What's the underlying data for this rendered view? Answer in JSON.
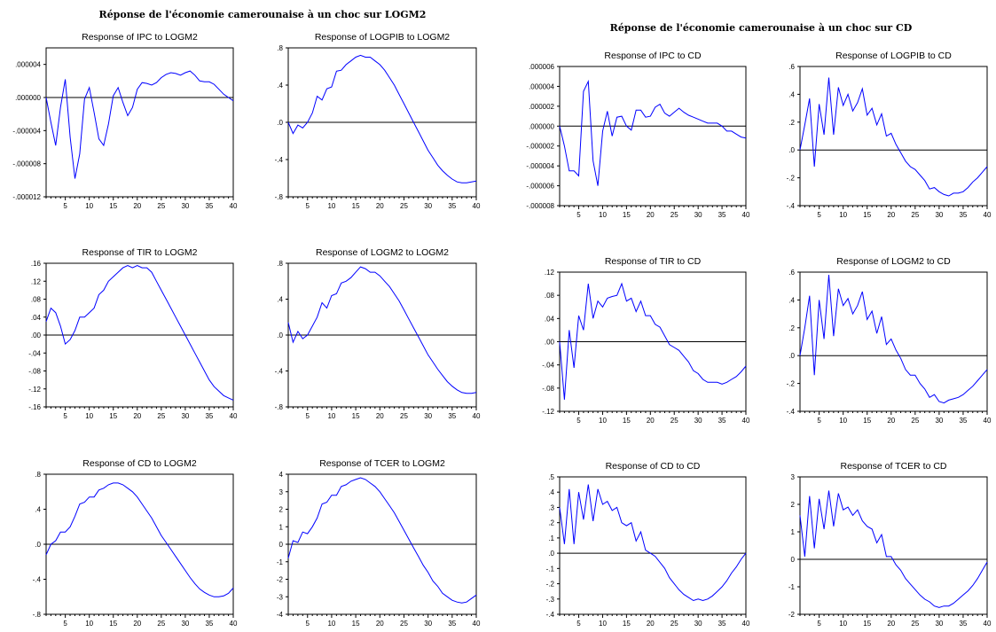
{
  "panels": [
    {
      "title": "Réponse de l'économie camerounaise à un choc sur LOGM2"
    },
    {
      "title": "Réponse de l'économie camerounaise à un choc sur CD"
    }
  ],
  "chart_data": [
    {
      "type": "line",
      "title": "Response of IPC to LOGM2",
      "x": [
        1,
        2,
        3,
        4,
        5,
        6,
        7,
        8,
        9,
        10,
        11,
        12,
        13,
        14,
        15,
        16,
        17,
        18,
        19,
        20,
        21,
        22,
        23,
        24,
        25,
        26,
        27,
        28,
        29,
        30,
        31,
        32,
        33,
        34,
        35,
        36,
        37,
        38,
        39,
        40
      ],
      "values": [
        0.0,
        -3e-06,
        -5.8e-06,
        -1.2e-06,
        2.2e-06,
        -4.8e-06,
        -9.8e-06,
        -6.8e-06,
        -2e-07,
        1.2e-06,
        -1.8e-06,
        -5e-06,
        -5.8e-06,
        -3.2e-06,
        2e-07,
        1.2e-06,
        -6e-07,
        -2.2e-06,
        -1.2e-06,
        1e-06,
        1.8e-06,
        1.7e-06,
        1.5e-06,
        1.8e-06,
        2.4e-06,
        2.8e-06,
        3e-06,
        2.9e-06,
        2.7e-06,
        3e-06,
        3.2e-06,
        2.7e-06,
        2e-06,
        1.9e-06,
        1.9e-06,
        1.6e-06,
        1e-06,
        4e-07,
        0.0,
        -4e-07
      ],
      "ylim": [
        -1.2e-05,
        6e-06
      ],
      "yticks": [
        "-.000012",
        "-.000008",
        "-.000004",
        ".000000",
        ".000004"
      ],
      "ytick_values": [
        -1.2e-05,
        -8e-06,
        -4e-06,
        0.0,
        4e-06
      ],
      "xticks": [
        5,
        10,
        15,
        20,
        25,
        30,
        35,
        40
      ]
    },
    {
      "type": "line",
      "title": "Response of LOGPIB to LOGM2",
      "x": [
        1,
        2,
        3,
        4,
        5,
        6,
        7,
        8,
        9,
        10,
        11,
        12,
        13,
        14,
        15,
        16,
        17,
        18,
        19,
        20,
        21,
        22,
        23,
        24,
        25,
        26,
        27,
        28,
        29,
        30,
        31,
        32,
        33,
        34,
        35,
        36,
        37,
        38,
        39,
        40
      ],
      "values": [
        0.0,
        -0.12,
        -0.03,
        -0.06,
        0.0,
        0.1,
        0.28,
        0.24,
        0.36,
        0.38,
        0.55,
        0.56,
        0.62,
        0.66,
        0.7,
        0.72,
        0.7,
        0.7,
        0.66,
        0.62,
        0.56,
        0.48,
        0.4,
        0.3,
        0.2,
        0.1,
        0.0,
        -0.1,
        -0.2,
        -0.3,
        -0.38,
        -0.46,
        -0.52,
        -0.57,
        -0.61,
        -0.64,
        -0.65,
        -0.65,
        -0.64,
        -0.63
      ],
      "ylim": [
        -0.8,
        0.8
      ],
      "yticks": [
        "-.8",
        "-.4",
        ".0",
        ".4",
        ".8"
      ],
      "ytick_values": [
        -0.8,
        -0.4,
        0.0,
        0.4,
        0.8
      ],
      "xticks": [
        5,
        10,
        15,
        20,
        25,
        30,
        35,
        40
      ]
    },
    {
      "type": "line",
      "title": "Response of TIR to LOGM2",
      "x": [
        1,
        2,
        3,
        4,
        5,
        6,
        7,
        8,
        9,
        10,
        11,
        12,
        13,
        14,
        15,
        16,
        17,
        18,
        19,
        20,
        21,
        22,
        23,
        24,
        25,
        26,
        27,
        28,
        29,
        30,
        31,
        32,
        33,
        34,
        35,
        36,
        37,
        38,
        39,
        40
      ],
      "values": [
        0.03,
        0.06,
        0.05,
        0.02,
        -0.02,
        -0.01,
        0.01,
        0.04,
        0.04,
        0.05,
        0.06,
        0.09,
        0.1,
        0.12,
        0.13,
        0.14,
        0.15,
        0.155,
        0.15,
        0.155,
        0.15,
        0.15,
        0.14,
        0.12,
        0.1,
        0.08,
        0.06,
        0.04,
        0.02,
        0.0,
        -0.02,
        -0.04,
        -0.06,
        -0.08,
        -0.1,
        -0.115,
        -0.125,
        -0.135,
        -0.14,
        -0.145
      ],
      "ylim": [
        -0.16,
        0.16
      ],
      "yticks": [
        "-.16",
        "-.12",
        "-.08",
        "-.04",
        ".00",
        ".04",
        ".08",
        ".12",
        ".16"
      ],
      "ytick_values": [
        -0.16,
        -0.12,
        -0.08,
        -0.04,
        0.0,
        0.04,
        0.08,
        0.12,
        0.16
      ],
      "xticks": [
        5,
        10,
        15,
        20,
        25,
        30,
        35,
        40
      ]
    },
    {
      "type": "line",
      "title": "Response of LOGM2 to LOGM2",
      "x": [
        1,
        2,
        3,
        4,
        5,
        6,
        7,
        8,
        9,
        10,
        11,
        12,
        13,
        14,
        15,
        16,
        17,
        18,
        19,
        20,
        21,
        22,
        23,
        24,
        25,
        26,
        27,
        28,
        29,
        30,
        31,
        32,
        33,
        34,
        35,
        36,
        37,
        38,
        39,
        40
      ],
      "values": [
        0.14,
        -0.08,
        0.04,
        -0.04,
        0.0,
        0.1,
        0.2,
        0.36,
        0.3,
        0.44,
        0.46,
        0.58,
        0.6,
        0.64,
        0.7,
        0.76,
        0.74,
        0.7,
        0.7,
        0.66,
        0.6,
        0.54,
        0.46,
        0.38,
        0.28,
        0.18,
        0.08,
        -0.02,
        -0.12,
        -0.22,
        -0.3,
        -0.38,
        -0.45,
        -0.52,
        -0.57,
        -0.61,
        -0.64,
        -0.65,
        -0.65,
        -0.64
      ],
      "ylim": [
        -0.8,
        0.8
      ],
      "yticks": [
        "-.8",
        "-.4",
        ".0",
        ".4",
        ".8"
      ],
      "ytick_values": [
        -0.8,
        -0.4,
        0.0,
        0.4,
        0.8
      ],
      "xticks": [
        5,
        10,
        15,
        20,
        25,
        30,
        35,
        40
      ]
    },
    {
      "type": "line",
      "title": "Response of CD to LOGM2",
      "x": [
        1,
        2,
        3,
        4,
        5,
        6,
        7,
        8,
        9,
        10,
        11,
        12,
        13,
        14,
        15,
        16,
        17,
        18,
        19,
        20,
        21,
        22,
        23,
        24,
        25,
        26,
        27,
        28,
        29,
        30,
        31,
        32,
        33,
        34,
        35,
        36,
        37,
        38,
        39,
        40
      ],
      "values": [
        -0.12,
        0.0,
        0.04,
        0.14,
        0.14,
        0.2,
        0.32,
        0.46,
        0.48,
        0.54,
        0.54,
        0.62,
        0.64,
        0.68,
        0.7,
        0.7,
        0.68,
        0.64,
        0.6,
        0.54,
        0.46,
        0.38,
        0.3,
        0.2,
        0.1,
        0.02,
        -0.06,
        -0.14,
        -0.22,
        -0.3,
        -0.38,
        -0.45,
        -0.51,
        -0.55,
        -0.58,
        -0.6,
        -0.6,
        -0.59,
        -0.56,
        -0.5
      ],
      "ylim": [
        -0.8,
        0.8
      ],
      "yticks": [
        "-.8",
        "-.4",
        ".0",
        ".4",
        ".8"
      ],
      "ytick_values": [
        -0.8,
        -0.4,
        0.0,
        0.4,
        0.8
      ],
      "xticks": [
        5,
        10,
        15,
        20,
        25,
        30,
        35,
        40
      ]
    },
    {
      "type": "line",
      "title": "Response of TCER to LOGM2",
      "x": [
        1,
        2,
        3,
        4,
        5,
        6,
        7,
        8,
        9,
        10,
        11,
        12,
        13,
        14,
        15,
        16,
        17,
        18,
        19,
        20,
        21,
        22,
        23,
        24,
        25,
        26,
        27,
        28,
        29,
        30,
        31,
        32,
        33,
        34,
        35,
        36,
        37,
        38,
        39,
        40
      ],
      "values": [
        -0.8,
        0.2,
        0.1,
        0.7,
        0.6,
        1.0,
        1.5,
        2.3,
        2.4,
        2.8,
        2.8,
        3.3,
        3.4,
        3.6,
        3.7,
        3.8,
        3.7,
        3.5,
        3.3,
        3.0,
        2.6,
        2.2,
        1.8,
        1.3,
        0.8,
        0.3,
        -0.2,
        -0.7,
        -1.2,
        -1.6,
        -2.1,
        -2.4,
        -2.8,
        -3.0,
        -3.2,
        -3.3,
        -3.35,
        -3.3,
        -3.1,
        -2.9
      ],
      "ylim": [
        -4,
        4
      ],
      "yticks": [
        "-4",
        "-3",
        "-2",
        "-1",
        "0",
        "1",
        "2",
        "3",
        "4"
      ],
      "ytick_values": [
        -4,
        -3,
        -2,
        -1,
        0,
        1,
        2,
        3,
        4
      ],
      "xticks": [
        5,
        10,
        15,
        20,
        25,
        30,
        35,
        40
      ]
    },
    {
      "type": "line",
      "title": "Response of IPC to CD",
      "x": [
        1,
        2,
        3,
        4,
        5,
        6,
        7,
        8,
        9,
        10,
        11,
        12,
        13,
        14,
        15,
        16,
        17,
        18,
        19,
        20,
        21,
        22,
        23,
        24,
        25,
        26,
        27,
        28,
        29,
        30,
        31,
        32,
        33,
        34,
        35,
        36,
        37,
        38,
        39,
        40
      ],
      "values": [
        0.0,
        -2e-06,
        -4.5e-06,
        -4.5e-06,
        -5e-06,
        3.5e-06,
        4.5e-06,
        -3.5e-06,
        -6e-06,
        -5e-07,
        1.5e-06,
        -1e-06,
        9e-07,
        1e-06,
        0.0,
        -4e-07,
        1.6e-06,
        1.6e-06,
        9e-07,
        1e-06,
        1.9e-06,
        2.2e-06,
        1.3e-06,
        1e-06,
        1.4e-06,
        1.8e-06,
        1.4e-06,
        1.1e-06,
        9e-07,
        7e-07,
        5e-07,
        3e-07,
        3e-07,
        3e-07,
        0.0,
        -5e-07,
        -5e-07,
        -8e-07,
        -1.1e-06,
        -1.2e-06
      ],
      "ylim": [
        -8e-06,
        6e-06
      ],
      "yticks": [
        "-.000008",
        "-.000006",
        "-.000004",
        "-.000002",
        ".000000",
        ".000002",
        ".000004",
        ".000006"
      ],
      "ytick_values": [
        -8e-06,
        -6e-06,
        -4e-06,
        -2e-06,
        0.0,
        2e-06,
        4e-06,
        6e-06
      ],
      "xticks": [
        5,
        10,
        15,
        20,
        25,
        30,
        35,
        40
      ]
    },
    {
      "type": "line",
      "title": "Response of LOGPIB to CD",
      "x": [
        1,
        2,
        3,
        4,
        5,
        6,
        7,
        8,
        9,
        10,
        11,
        12,
        13,
        14,
        15,
        16,
        17,
        18,
        19,
        20,
        21,
        22,
        23,
        24,
        25,
        26,
        27,
        28,
        29,
        30,
        31,
        32,
        33,
        34,
        35,
        36,
        37,
        38,
        39,
        40
      ],
      "values": [
        0.0,
        0.18,
        0.37,
        -0.12,
        0.33,
        0.11,
        0.52,
        0.11,
        0.45,
        0.32,
        0.4,
        0.28,
        0.34,
        0.44,
        0.25,
        0.3,
        0.18,
        0.26,
        0.1,
        0.12,
        0.04,
        -0.02,
        -0.08,
        -0.12,
        -0.14,
        -0.18,
        -0.22,
        -0.28,
        -0.27,
        -0.3,
        -0.32,
        -0.33,
        -0.31,
        -0.31,
        -0.3,
        -0.27,
        -0.23,
        -0.2,
        -0.16,
        -0.12
      ],
      "ylim": [
        -0.4,
        0.6
      ],
      "yticks": [
        "-.4",
        "-.2",
        ".0",
        ".2",
        ".4",
        ".6"
      ],
      "ytick_values": [
        -0.4,
        -0.2,
        0.0,
        0.2,
        0.4,
        0.6
      ],
      "xticks": [
        5,
        10,
        15,
        20,
        25,
        30,
        35,
        40
      ]
    },
    {
      "type": "line",
      "title": "Response of TIR to CD",
      "x": [
        1,
        2,
        3,
        4,
        5,
        6,
        7,
        8,
        9,
        10,
        11,
        12,
        13,
        14,
        15,
        16,
        17,
        18,
        19,
        20,
        21,
        22,
        23,
        24,
        25,
        26,
        27,
        28,
        29,
        30,
        31,
        32,
        33,
        34,
        35,
        36,
        37,
        38,
        39,
        40
      ],
      "values": [
        0.0,
        -0.1,
        0.02,
        -0.045,
        0.045,
        0.02,
        0.1,
        0.04,
        0.07,
        0.06,
        0.075,
        0.078,
        0.08,
        0.1,
        0.07,
        0.075,
        0.052,
        0.07,
        0.045,
        0.045,
        0.03,
        0.025,
        0.01,
        -0.005,
        -0.01,
        -0.015,
        -0.025,
        -0.035,
        -0.05,
        -0.055,
        -0.065,
        -0.07,
        -0.07,
        -0.07,
        -0.073,
        -0.07,
        -0.065,
        -0.06,
        -0.052,
        -0.042
      ],
      "ylim": [
        -0.12,
        0.12
      ],
      "yticks": [
        "-.12",
        "-.08",
        "-.04",
        ".00",
        ".04",
        ".08",
        ".12"
      ],
      "ytick_values": [
        -0.12,
        -0.08,
        -0.04,
        0.0,
        0.04,
        0.08,
        0.12
      ],
      "xticks": [
        5,
        10,
        15,
        20,
        25,
        30,
        35,
        40
      ]
    },
    {
      "type": "line",
      "title": "Response of LOGM2 to CD",
      "x": [
        1,
        2,
        3,
        4,
        5,
        6,
        7,
        8,
        9,
        10,
        11,
        12,
        13,
        14,
        15,
        16,
        17,
        18,
        19,
        20,
        21,
        22,
        23,
        24,
        25,
        26,
        27,
        28,
        29,
        30,
        31,
        32,
        33,
        34,
        35,
        36,
        37,
        38,
        39,
        40
      ],
      "values": [
        0.0,
        0.2,
        0.43,
        -0.14,
        0.4,
        0.12,
        0.58,
        0.14,
        0.48,
        0.36,
        0.41,
        0.3,
        0.36,
        0.46,
        0.26,
        0.32,
        0.16,
        0.28,
        0.08,
        0.12,
        0.04,
        -0.02,
        -0.1,
        -0.14,
        -0.14,
        -0.2,
        -0.24,
        -0.3,
        -0.28,
        -0.33,
        -0.34,
        -0.32,
        -0.31,
        -0.3,
        -0.28,
        -0.25,
        -0.22,
        -0.18,
        -0.14,
        -0.1
      ],
      "ylim": [
        -0.4,
        0.6
      ],
      "yticks": [
        "-.4",
        "-.2",
        ".0",
        ".2",
        ".4",
        ".6"
      ],
      "ytick_values": [
        -0.4,
        -0.2,
        0.0,
        0.2,
        0.4,
        0.6
      ],
      "xticks": [
        5,
        10,
        15,
        20,
        25,
        30,
        35,
        40
      ]
    },
    {
      "type": "line",
      "title": "Response of CD to CD",
      "x": [
        1,
        2,
        3,
        4,
        5,
        6,
        7,
        8,
        9,
        10,
        11,
        12,
        13,
        14,
        15,
        16,
        17,
        18,
        19,
        20,
        21,
        22,
        23,
        24,
        25,
        26,
        27,
        28,
        29,
        30,
        31,
        32,
        33,
        34,
        35,
        36,
        37,
        38,
        39,
        40
      ],
      "values": [
        0.3,
        0.06,
        0.42,
        0.06,
        0.4,
        0.22,
        0.45,
        0.21,
        0.42,
        0.32,
        0.34,
        0.28,
        0.3,
        0.2,
        0.18,
        0.2,
        0.08,
        0.14,
        0.02,
        0.0,
        -0.02,
        -0.06,
        -0.1,
        -0.16,
        -0.2,
        -0.24,
        -0.27,
        -0.29,
        -0.31,
        -0.3,
        -0.31,
        -0.3,
        -0.28,
        -0.25,
        -0.22,
        -0.18,
        -0.13,
        -0.09,
        -0.04,
        0.0
      ],
      "ylim": [
        -0.4,
        0.5
      ],
      "yticks": [
        "-.4",
        "-.3",
        "-.2",
        "-.1",
        ".0",
        ".1",
        ".2",
        ".3",
        ".4",
        ".5"
      ],
      "ytick_values": [
        -0.4,
        -0.3,
        -0.2,
        -0.1,
        0.0,
        0.1,
        0.2,
        0.3,
        0.4,
        0.5
      ],
      "xticks": [
        5,
        10,
        15,
        20,
        25,
        30,
        35,
        40
      ]
    },
    {
      "type": "line",
      "title": "Response of TCER to CD",
      "x": [
        1,
        2,
        3,
        4,
        5,
        6,
        7,
        8,
        9,
        10,
        11,
        12,
        13,
        14,
        15,
        16,
        17,
        18,
        19,
        20,
        21,
        22,
        23,
        24,
        25,
        26,
        27,
        28,
        29,
        30,
        31,
        32,
        33,
        34,
        35,
        36,
        37,
        38,
        39,
        40
      ],
      "values": [
        1.6,
        0.1,
        2.3,
        0.4,
        2.2,
        1.1,
        2.5,
        1.2,
        2.4,
        1.8,
        1.9,
        1.6,
        1.8,
        1.4,
        1.2,
        1.1,
        0.6,
        0.9,
        0.1,
        0.1,
        -0.2,
        -0.4,
        -0.7,
        -0.9,
        -1.1,
        -1.3,
        -1.45,
        -1.55,
        -1.7,
        -1.75,
        -1.7,
        -1.7,
        -1.6,
        -1.45,
        -1.3,
        -1.15,
        -0.95,
        -0.7,
        -0.4,
        -0.1
      ],
      "ylim": [
        -2,
        3
      ],
      "yticks": [
        "-2",
        "-1",
        "0",
        "1",
        "2",
        "3"
      ],
      "ytick_values": [
        -2,
        -1,
        0,
        1,
        2,
        3
      ],
      "xticks": [
        5,
        10,
        15,
        20,
        25,
        30,
        35,
        40
      ]
    }
  ]
}
